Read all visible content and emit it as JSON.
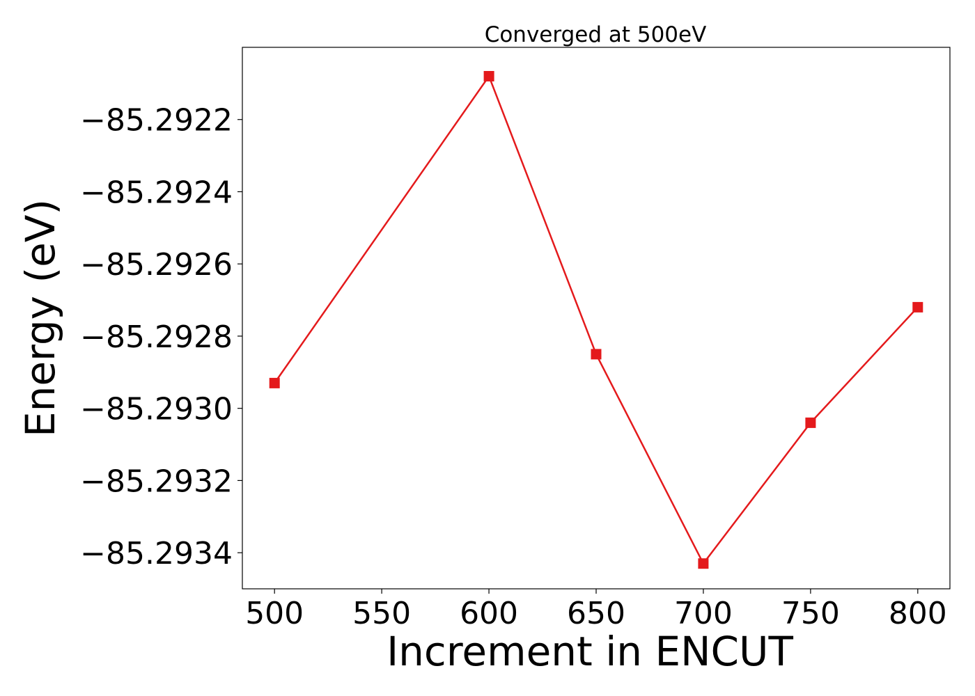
{
  "chart_data": {
    "type": "line",
    "title": "Converged at 500eV",
    "xlabel": "Increment in ENCUT",
    "ylabel": "Energy (eV)",
    "x": [
      500,
      600,
      650,
      700,
      750,
      800
    ],
    "series": [
      {
        "values": [
          -85.29293,
          -85.29208,
          -85.29285,
          -85.29343,
          -85.29304,
          -85.29272
        ],
        "color": "#e41a1c",
        "marker": "square"
      }
    ],
    "xlim": [
      485,
      815
    ],
    "ylim": [
      -85.2935,
      -85.292
    ],
    "xticks": [
      500,
      550,
      600,
      650,
      700,
      750,
      800
    ],
    "xtick_labels": [
      "500",
      "550",
      "600",
      "650",
      "700",
      "750",
      "800"
    ],
    "yticks": [
      -85.2922,
      -85.2924,
      -85.2926,
      -85.2928,
      -85.293,
      -85.2932,
      -85.2934
    ],
    "ytick_labels": [
      "−85.2922",
      "−85.2924",
      "−85.2926",
      "−85.2928",
      "−85.2930",
      "−85.2932",
      "−85.2934"
    ],
    "grid": false,
    "legend": "none"
  }
}
